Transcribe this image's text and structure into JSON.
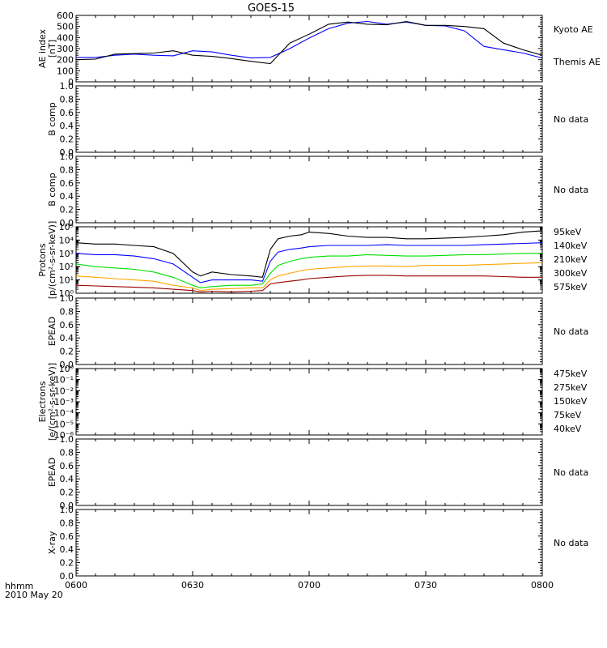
{
  "title": "GOES-15",
  "time_axis": {
    "unit_label": "hhmm",
    "date_label": "2010 May 20",
    "ticks": [
      "0600",
      "0630",
      "0700",
      "0730",
      "0800"
    ]
  },
  "colors": {
    "black": "#000000",
    "blue": "#0000ff",
    "green": "#00dd00",
    "orange": "#ffa500",
    "darkred": "#990000"
  },
  "chart_data": [
    {
      "type": "line",
      "id": "ae",
      "ylabel": "AE index\n[nT]",
      "yscale": "linear",
      "ylim": [
        0,
        600
      ],
      "yticks": [
        "0",
        "100",
        "200",
        "300",
        "400",
        "500",
        "600"
      ],
      "x": [
        0,
        5,
        10,
        15,
        20,
        25,
        30,
        35,
        40,
        45,
        50,
        55,
        60,
        65,
        70,
        75,
        80,
        85,
        90,
        95,
        100,
        105,
        110,
        115,
        120
      ],
      "series": [
        {
          "name": "Kyoto AE",
          "color": "#0000ff",
          "values": [
            220,
            220,
            240,
            250,
            240,
            235,
            280,
            270,
            240,
            215,
            220,
            300,
            395,
            480,
            530,
            545,
            520,
            540,
            510,
            505,
            460,
            320,
            290,
            260,
            215
          ]
        },
        {
          "name": "Themis AE",
          "color": "#000000",
          "values": [
            200,
            205,
            250,
            255,
            260,
            280,
            240,
            230,
            210,
            185,
            165,
            350,
            430,
            520,
            540,
            520,
            515,
            545,
            510,
            510,
            500,
            480,
            350,
            290,
            240
          ]
        }
      ]
    },
    {
      "type": "line",
      "id": "bcomp1",
      "ylabel": "B comp",
      "yscale": "linear",
      "ylim": [
        0,
        1
      ],
      "yticks": [
        "0.0",
        "0.2",
        "0.4",
        "0.6",
        "0.8",
        "1.0"
      ],
      "status": "No data",
      "series": []
    },
    {
      "type": "line",
      "id": "bcomp2",
      "ylabel": "B comp",
      "yscale": "linear",
      "ylim": [
        0,
        1
      ],
      "yticks": [
        "0.0",
        "0.2",
        "0.4",
        "0.6",
        "0.8",
        "1.0"
      ],
      "status": "No data",
      "series": []
    },
    {
      "type": "line",
      "id": "protons",
      "ylabel": "Protons\n[p/(cm²-s-sr-keV)]",
      "yscale": "log",
      "ylim": [
        0,
        5
      ],
      "yticks": [
        "10⁰",
        "10¹",
        "10²",
        "10³",
        "10⁴",
        "10⁵"
      ],
      "x": [
        0,
        5,
        10,
        15,
        20,
        25,
        30,
        32,
        35,
        40,
        45,
        48,
        50,
        52,
        55,
        58,
        60,
        65,
        70,
        75,
        80,
        85,
        90,
        95,
        100,
        105,
        110,
        115,
        120
      ],
      "series": [
        {
          "name": "575keV",
          "color": "#990000",
          "values": [
            0.6,
            0.55,
            0.5,
            0.45,
            0.4,
            0.3,
            0.2,
            0.1,
            0.15,
            0.1,
            0.15,
            0.2,
            0.7,
            0.8,
            0.9,
            1.0,
            1.1,
            1.2,
            1.3,
            1.35,
            1.35,
            1.3,
            1.3,
            1.3,
            1.3,
            1.3,
            1.25,
            1.2,
            1.2
          ]
        },
        {
          "name": "300keV",
          "color": "#ffa500",
          "values": [
            1.3,
            1.2,
            1.1,
            1.0,
            0.9,
            0.6,
            0.4,
            0.2,
            0.3,
            0.35,
            0.4,
            0.4,
            1.0,
            1.3,
            1.5,
            1.7,
            1.8,
            1.9,
            2.0,
            2.05,
            2.05,
            2.0,
            2.1,
            2.1,
            2.1,
            2.15,
            2.2,
            2.25,
            2.3
          ]
        },
        {
          "name": "210keV",
          "color": "#00dd00",
          "values": [
            2.2,
            2.0,
            1.9,
            1.8,
            1.6,
            1.2,
            0.6,
            0.4,
            0.5,
            0.6,
            0.6,
            0.7,
            1.5,
            2.1,
            2.4,
            2.6,
            2.7,
            2.8,
            2.8,
            2.9,
            2.85,
            2.8,
            2.8,
            2.85,
            2.9,
            2.9,
            2.95,
            3.0,
            3.0
          ]
        },
        {
          "name": "140keV",
          "color": "#0000ff",
          "values": [
            3.0,
            2.9,
            2.9,
            2.8,
            2.6,
            2.2,
            1.2,
            0.8,
            1.0,
            1.0,
            1.0,
            0.9,
            2.4,
            3.1,
            3.3,
            3.4,
            3.5,
            3.6,
            3.6,
            3.6,
            3.65,
            3.6,
            3.6,
            3.6,
            3.6,
            3.65,
            3.7,
            3.75,
            3.8
          ]
        },
        {
          "name": "95keV",
          "color": "#000000",
          "values": [
            3.8,
            3.7,
            3.7,
            3.6,
            3.5,
            3.0,
            1.6,
            1.3,
            1.6,
            1.4,
            1.3,
            1.2,
            3.3,
            4.1,
            4.3,
            4.4,
            4.6,
            4.5,
            4.3,
            4.2,
            4.2,
            4.1,
            4.1,
            4.15,
            4.2,
            4.3,
            4.4,
            4.6,
            4.7
          ]
        }
      ]
    },
    {
      "type": "line",
      "id": "epead1",
      "ylabel": "EPEAD",
      "yscale": "linear",
      "ylim": [
        0,
        1
      ],
      "yticks": [
        "0.0",
        "0.2",
        "0.4",
        "0.6",
        "0.8",
        "1.0"
      ],
      "status": "No data",
      "series": []
    },
    {
      "type": "line",
      "id": "electrons",
      "ylabel": "Electrons\n[e/(cm²-s-sr-keV)]",
      "yscale": "log",
      "ylim": [
        -6,
        0
      ],
      "yticks": [
        "10⁻⁶",
        "10⁻⁵",
        "10⁻⁴",
        "10⁻³",
        "10⁻²",
        "10⁻¹",
        "10⁰"
      ],
      "legend": [
        {
          "name": "475keV",
          "color": "#990000"
        },
        {
          "name": "275keV",
          "color": "#ffa500"
        },
        {
          "name": "150keV",
          "color": "#00dd00"
        },
        {
          "name": "75keV",
          "color": "#0000ff"
        },
        {
          "name": "40keV",
          "color": "#000000"
        }
      ],
      "series": []
    },
    {
      "type": "line",
      "id": "epead2",
      "ylabel": "EPEAD",
      "yscale": "linear",
      "ylim": [
        0,
        1
      ],
      "yticks": [
        "0.0",
        "0.2",
        "0.4",
        "0.6",
        "0.8",
        "1.0"
      ],
      "status": "No data",
      "series": []
    },
    {
      "type": "line",
      "id": "xray",
      "ylabel": "X-ray",
      "yscale": "linear",
      "ylim": [
        0,
        1
      ],
      "yticks": [
        "0.0",
        "0.2",
        "0.4",
        "0.6",
        "0.8",
        "1.0"
      ],
      "status": "No data",
      "series": []
    }
  ]
}
